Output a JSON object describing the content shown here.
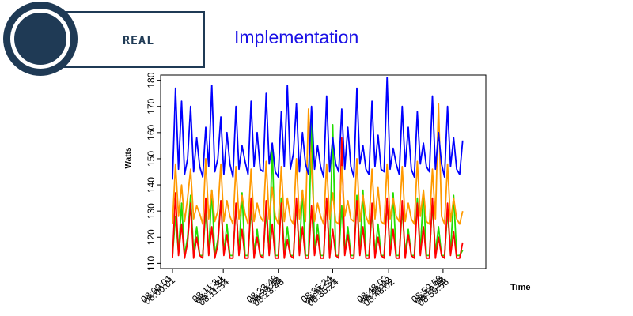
{
  "header": {
    "logo_text": "REAL",
    "title": "Implementation"
  },
  "colors": {
    "brand_dark": "#1f3a55",
    "title_blue": "#1a10e6",
    "series_blue": "#0000ff",
    "series_orange": "#ff9900",
    "series_red": "#ff0000",
    "series_green": "#22dd00"
  },
  "chart_data": {
    "type": "line",
    "title": "",
    "xlabel": "Time",
    "ylabel": "Watts",
    "ylim": [
      108,
      182
    ],
    "yticks": [
      110,
      120,
      130,
      140,
      150,
      160,
      170,
      180
    ],
    "xlim": [
      0,
      100
    ],
    "grid": false,
    "x_tick_labels": [
      {
        "x": 0,
        "labels": [
          "08:00:01",
          "08:00:01"
        ]
      },
      {
        "x": 16.8,
        "labels": [
          "08:11:34",
          "08:11:34",
          "08:11:34"
        ]
      },
      {
        "x": 35.0,
        "labels": [
          "08:23:48",
          "08:23:48",
          "08:23:48"
        ]
      },
      {
        "x": 53.0,
        "labels": [
          "08:35:24",
          "08:35:24",
          "08:35:24"
        ]
      },
      {
        "x": 71.5,
        "labels": [
          "08:48:02",
          "08:48:02",
          "08:48:02"
        ]
      },
      {
        "x": 89.5,
        "labels": [
          "08:59:58",
          "08:59:58",
          "08:59:58"
        ]
      }
    ],
    "series": [
      {
        "color": "#0000ff",
        "x": [
          0,
          1,
          2,
          3,
          4,
          5,
          6,
          7,
          8,
          9,
          10,
          11,
          12,
          13,
          14,
          15,
          16,
          17,
          18,
          19,
          20,
          21,
          22,
          23,
          24,
          25,
          26,
          27,
          28,
          29,
          30,
          31,
          32,
          33,
          34,
          35,
          36,
          37,
          38,
          39,
          40,
          41,
          42,
          43,
          44,
          45,
          46,
          47,
          48,
          49,
          50,
          51,
          52,
          53,
          54,
          55,
          56,
          57,
          58,
          59,
          60,
          61,
          62,
          63,
          64,
          65,
          66,
          67,
          68,
          69,
          70,
          71,
          72,
          73,
          74,
          75,
          76,
          77,
          78,
          79,
          80,
          81,
          82,
          83,
          84,
          85,
          86,
          87,
          88,
          89,
          90,
          91,
          92,
          93,
          94,
          95,
          96
        ],
        "values": [
          142,
          177,
          146,
          172,
          144,
          150,
          170,
          145,
          158,
          147,
          143,
          162,
          147,
          178,
          145,
          150,
          166,
          144,
          160,
          148,
          143,
          170,
          146,
          155,
          149,
          144,
          172,
          147,
          160,
          146,
          145,
          175,
          148,
          156,
          145,
          143,
          168,
          147,
          178,
          146,
          152,
          171,
          145,
          160,
          148,
          144,
          170,
          146,
          155,
          147,
          143,
          174,
          145,
          158,
          148,
          145,
          169,
          146,
          162,
          147,
          143,
          177,
          148,
          155,
          146,
          144,
          172,
          147,
          159,
          146,
          145,
          181,
          146,
          154,
          148,
          144,
          170,
          147,
          162,
          146,
          143,
          168,
          148,
          156,
          147,
          145,
          174,
          146,
          160,
          148,
          143,
          170,
          147,
          158,
          146,
          144,
          157
        ]
      },
      {
        "color": "#ff9900",
        "x": [
          0,
          1,
          2,
          3,
          4,
          5,
          6,
          7,
          8,
          9,
          10,
          11,
          12,
          13,
          14,
          15,
          16,
          17,
          18,
          19,
          20,
          21,
          22,
          23,
          24,
          25,
          26,
          27,
          28,
          29,
          30,
          31,
          32,
          33,
          34,
          35,
          36,
          37,
          38,
          39,
          40,
          41,
          42,
          43,
          44,
          45,
          46,
          47,
          48,
          49,
          50,
          51,
          52,
          53,
          54,
          55,
          56,
          57,
          58,
          59,
          60,
          61,
          62,
          63,
          64,
          65,
          66,
          67,
          68,
          69,
          70,
          71,
          72,
          73,
          74,
          75,
          76,
          77,
          78,
          79,
          80,
          81,
          82,
          83,
          84,
          85,
          86,
          87,
          88,
          89,
          90,
          91,
          92,
          93,
          94,
          95,
          96
        ],
        "values": [
          125,
          148,
          128,
          140,
          126,
          135,
          146,
          127,
          132,
          129,
          125,
          150,
          127,
          138,
          126,
          130,
          148,
          126,
          134,
          128,
          125,
          147,
          127,
          136,
          129,
          125,
          146,
          126,
          133,
          128,
          126,
          149,
          127,
          139,
          128,
          125,
          147,
          126,
          135,
          127,
          125,
          150,
          127,
          138,
          126,
          169,
          146,
          126,
          133,
          128,
          125,
          148,
          127,
          137,
          126,
          125,
          147,
          128,
          134,
          127,
          126,
          150,
          126,
          136,
          128,
          125,
          146,
          127,
          139,
          126,
          125,
          148,
          127,
          135,
          128,
          126,
          147,
          126,
          133,
          127,
          125,
          149,
          128,
          138,
          126,
          125,
          146,
          127,
          171,
          128,
          125,
          148,
          126,
          135,
          127,
          125,
          130
        ]
      },
      {
        "color": "#ff0000",
        "x": [
          0,
          1,
          2,
          3,
          4,
          5,
          6,
          7,
          8,
          9,
          10,
          11,
          12,
          13,
          14,
          15,
          16,
          17,
          18,
          19,
          20,
          21,
          22,
          23,
          24,
          25,
          26,
          27,
          28,
          29,
          30,
          31,
          32,
          33,
          34,
          35,
          36,
          37,
          38,
          39,
          40,
          41,
          42,
          43,
          44,
          45,
          46,
          47,
          48,
          49,
          50,
          51,
          52,
          53,
          54,
          55,
          56,
          57,
          58,
          59,
          60,
          61,
          62,
          63,
          64,
          65,
          66,
          67,
          68,
          69,
          70,
          71,
          72,
          73,
          74,
          75,
          76,
          77,
          78,
          79,
          80,
          81,
          82,
          83,
          84,
          85,
          86,
          87,
          88,
          89,
          90,
          91,
          92,
          93,
          94,
          95,
          96
        ],
        "values": [
          112,
          137,
          113,
          125,
          112,
          118,
          133,
          112,
          120,
          113,
          112,
          135,
          113,
          124,
          112,
          117,
          134,
          113,
          121,
          112,
          112,
          133,
          113,
          123,
          112,
          112,
          135,
          112,
          120,
          113,
          112,
          134,
          113,
          125,
          112,
          112,
          133,
          112,
          119,
          113,
          112,
          135,
          113,
          124,
          112,
          112,
          132,
          113,
          121,
          112,
          112,
          135,
          112,
          123,
          113,
          112,
          158,
          113,
          121,
          112,
          112,
          134,
          113,
          124,
          112,
          112,
          133,
          112,
          120,
          113,
          112,
          135,
          113,
          123,
          112,
          112,
          134,
          112,
          121,
          113,
          112,
          133,
          113,
          124,
          112,
          112,
          135,
          112,
          120,
          113,
          112,
          133,
          113,
          122,
          112,
          112,
          118
        ]
      },
      {
        "color": "#22dd00",
        "x": [
          0,
          1,
          2,
          3,
          4,
          5,
          6,
          7,
          8,
          9,
          10,
          11,
          12,
          13,
          14,
          15,
          16,
          17,
          18,
          19,
          20,
          21,
          22,
          23,
          24,
          25,
          26,
          27,
          28,
          29,
          30,
          31,
          32,
          33,
          34,
          35,
          36,
          37,
          38,
          39,
          40,
          41,
          42,
          43,
          44,
          45,
          46,
          47,
          48,
          49,
          50,
          51,
          52,
          53,
          54,
          55,
          56,
          57,
          58,
          59,
          60,
          61,
          62,
          63,
          64,
          65,
          66,
          67,
          68,
          69,
          70,
          71,
          72,
          73,
          74,
          75,
          76,
          77,
          78,
          79,
          80,
          81,
          82,
          83,
          84,
          85,
          86,
          87,
          88,
          89,
          90,
          91,
          92,
          93,
          94,
          95,
          96
        ],
        "values": [
          113,
          128,
          114,
          133,
          113,
          120,
          136,
          114,
          124,
          113,
          113,
          130,
          114,
          138,
          113,
          119,
          134,
          114,
          125,
          113,
          113,
          132,
          114,
          137,
          113,
          113,
          131,
          114,
          123,
          113,
          113,
          130,
          114,
          155,
          113,
          113,
          135,
          114,
          124,
          113,
          113,
          133,
          114,
          138,
          113,
          113,
          165,
          114,
          125,
          113,
          113,
          134,
          114,
          163,
          113,
          113,
          132,
          114,
          124,
          113,
          113,
          136,
          114,
          138,
          113,
          113,
          130,
          114,
          125,
          113,
          113,
          134,
          114,
          137,
          113,
          113,
          131,
          114,
          123,
          113,
          113,
          135,
          114,
          138,
          113,
          113,
          133,
          114,
          124,
          113,
          113,
          130,
          114,
          136,
          113,
          113,
          115
        ]
      }
    ]
  }
}
